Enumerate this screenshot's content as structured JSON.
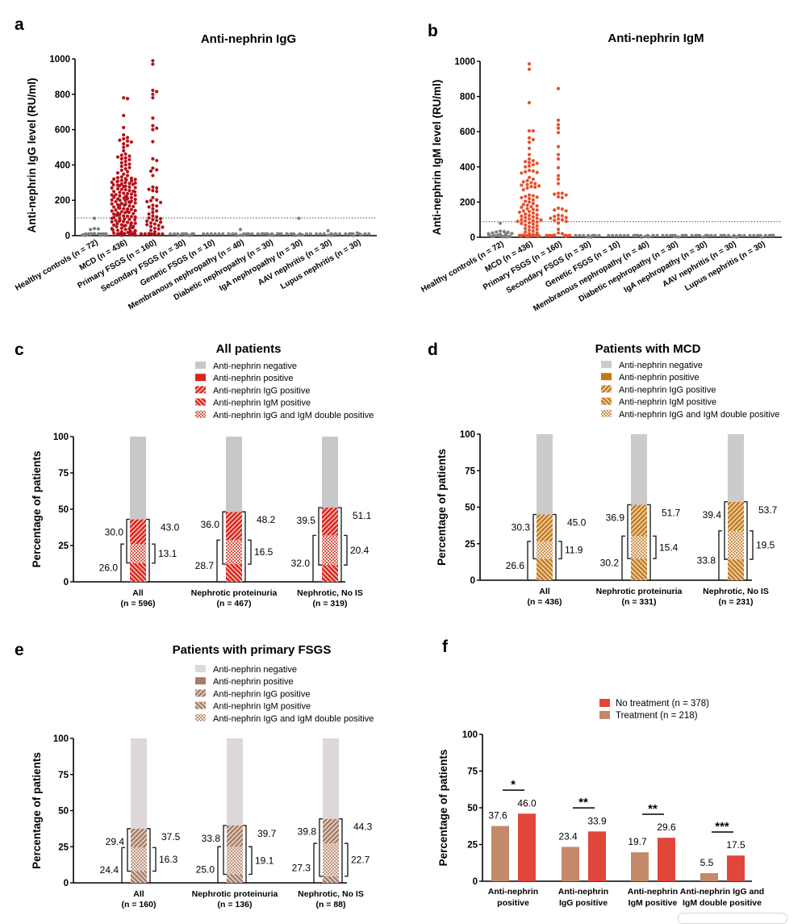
{
  "colors": {
    "gray_dot": "#808080",
    "igg_red": "#b5121b",
    "igm_orange": "#e4512f",
    "all_patients": "#d9261c",
    "mcd": "#c47a1a",
    "fsgs": "#a67c62",
    "negative_c": "#c8c8c8",
    "negative_d": "#cbcbcb",
    "negative_e": "#ddd8da",
    "no_treatment": "#e0463a",
    "treatment": "#c4896a"
  },
  "chart_data": [
    {
      "panel": "a",
      "type": "scatter",
      "title": "Anti-nephrin IgG",
      "ylabel": "Anti-nephrin IgG level (RU/ml)",
      "ylim": [
        0,
        1000
      ],
      "yticks": [
        0,
        200,
        400,
        600,
        800,
        1000
      ],
      "threshold": 100,
      "highlight_color": "#b5121b",
      "categories": [
        "Healthy controls (n = 72)",
        "MCD (n = 436)",
        "Primary FSGS (n = 160)",
        "Secondary FSGS (n = 30)",
        "Genetic FSGS (n = 10)",
        "Membranous nephropathy (n = 40)",
        "Diabetic nephropathy (n = 30)",
        "IgA nephropathy (n = 30)",
        "AAV nephritis (n = 30)",
        "Lupus nephritis (n = 30)"
      ],
      "highlighted": [
        1,
        2
      ],
      "values": [
        [
          98,
          40,
          38,
          35,
          12,
          10,
          8,
          6,
          5,
          5,
          4,
          3,
          2,
          2,
          1,
          0,
          0,
          0,
          0,
          0,
          0,
          0
        ],
        [
          780,
          775,
          680,
          612,
          570,
          555,
          548,
          540,
          535,
          530,
          520,
          510,
          500,
          480,
          462,
          455,
          450,
          445,
          440,
          435,
          430,
          420,
          412,
          405,
          400,
          392,
          385,
          378,
          370,
          362,
          355,
          348,
          340,
          332,
          328,
          325,
          322,
          320,
          318,
          315,
          312,
          310,
          308,
          305,
          302,
          300,
          298,
          295,
          292,
          290,
          288,
          285,
          282,
          280,
          278,
          275,
          272,
          270,
          265,
          262,
          260,
          255,
          252,
          250,
          248,
          245,
          240,
          238,
          235,
          232,
          230,
          228,
          225,
          222,
          220,
          218,
          215,
          212,
          210,
          208,
          205,
          202,
          200,
          198,
          195,
          192,
          190,
          188,
          185,
          182,
          180,
          178,
          175,
          172,
          170,
          168,
          165,
          162,
          160,
          158,
          155,
          152,
          150,
          148,
          145,
          142,
          140,
          138,
          135,
          132,
          130,
          128,
          125,
          122,
          120,
          118,
          115,
          112,
          110,
          108,
          105,
          102,
          100,
          98,
          95,
          92,
          90,
          88,
          85,
          82,
          80,
          78,
          75,
          72,
          70,
          68,
          65,
          62,
          60,
          58,
          55,
          52,
          50,
          48,
          45,
          42,
          40,
          38,
          35,
          32,
          30,
          28,
          25,
          22,
          20,
          18,
          15,
          12,
          10,
          8,
          5,
          3,
          2,
          0,
          0,
          0,
          0,
          0,
          0,
          0,
          0
        ],
        [
          990,
          970,
          822,
          815,
          800,
          780,
          665,
          622,
          608,
          600,
          532,
          435,
          425,
          382,
          372,
          365,
          340,
          275,
          270,
          262,
          255,
          250,
          215,
          202,
          198,
          192,
          188,
          172,
          168,
          162,
          152,
          140,
          132,
          122,
          112,
          106,
          100,
          96,
          90,
          86,
          82,
          76,
          72,
          66,
          62,
          58,
          52,
          48,
          42,
          38,
          30,
          22,
          12,
          6,
          0,
          0,
          0,
          0,
          0,
          0
        ],
        [
          10,
          3,
          2,
          1,
          0,
          0,
          0,
          0,
          0,
          0,
          0,
          0
        ],
        [
          0,
          0,
          0,
          0,
          0,
          0
        ],
        [
          35,
          3,
          2,
          1,
          0,
          0,
          0,
          0,
          0,
          0,
          0,
          0,
          0
        ],
        [
          2,
          1,
          0,
          0,
          0,
          0,
          0,
          0,
          0,
          0,
          0
        ],
        [
          98,
          5,
          3,
          1,
          0,
          0,
          0,
          0,
          0,
          0,
          0
        ],
        [
          28,
          2,
          1,
          0,
          0,
          0,
          0,
          0,
          0,
          0,
          0
        ],
        [
          15,
          3,
          1,
          0,
          0,
          0,
          0,
          0,
          0,
          0,
          0
        ]
      ]
    },
    {
      "panel": "b",
      "type": "scatter",
      "title": "Anti-nephrin IgM",
      "ylabel": "Anti-nephrin IgM level (RU/ml)",
      "ylim": [
        0,
        1000
      ],
      "yticks": [
        0,
        200,
        400,
        600,
        800,
        1000
      ],
      "threshold": 88,
      "highlight_color": "#e4512f",
      "categories": [
        "Healthy controls (n = 72)",
        "MCD (n = 436)",
        "Primary FSGS (n = 160)",
        "Secondary FSGS (n = 30)",
        "Genetic FSGS (n = 10)",
        "Membranous nephropathy (n = 40)",
        "Diabetic nephropathy (n = 30)",
        "IgA nephropathy (n = 30)",
        "AAV nephritis (n = 30)",
        "Lupus nephritis (n = 30)"
      ],
      "highlighted": [
        1,
        2
      ],
      "values": [
        [
          80,
          35,
          32,
          30,
          28,
          25,
          22,
          20,
          18,
          15,
          12,
          10,
          8,
          6,
          5,
          5,
          3,
          2,
          0,
          0,
          0,
          0,
          0,
          0
        ],
        [
          985,
          955,
          765,
          605,
          605,
          565,
          555,
          540,
          505,
          470,
          445,
          435,
          430,
          425,
          420,
          412,
          405,
          400,
          380,
          376,
          372,
          368,
          365,
          340,
          330,
          322,
          315,
          310,
          305,
          300,
          296,
          292,
          288,
          285,
          280,
          270,
          240,
          236,
          232,
          228,
          225,
          220,
          212,
          205,
          200,
          192,
          186,
          182,
          178,
          174,
          170,
          162,
          158,
          155,
          150,
          146,
          142,
          138,
          132,
          128,
          124,
          120,
          116,
          112,
          108,
          104,
          100,
          98,
          95,
          92,
          90,
          86,
          82,
          78,
          75,
          70,
          65,
          60,
          55,
          50,
          45,
          40,
          35,
          30,
          25,
          20,
          15,
          12,
          10,
          8,
          5,
          3,
          0,
          0,
          0,
          0,
          0,
          0,
          0,
          0,
          0,
          0
        ],
        [
          845,
          665,
          640,
          620,
          595,
          515,
          470,
          445,
          395,
          350,
          330,
          305,
          250,
          250,
          245,
          240,
          230,
          225,
          165,
          160,
          155,
          150,
          125,
          122,
          118,
          112,
          108,
          104,
          100,
          96,
          90,
          80,
          45,
          25,
          20,
          12,
          6,
          0,
          0,
          0,
          0,
          0,
          0,
          0,
          0
        ],
        [
          2,
          1,
          0,
          0,
          0,
          0,
          0,
          0,
          0,
          0
        ],
        [
          0,
          0,
          0,
          0,
          0,
          0
        ],
        [
          5,
          2,
          1,
          0,
          0,
          0,
          0,
          0,
          0,
          0,
          0,
          0
        ],
        [
          6,
          2,
          0,
          0,
          0,
          0,
          0,
          0,
          0,
          0
        ],
        [
          2,
          0,
          0,
          0,
          0,
          0,
          0,
          0,
          0,
          0
        ],
        [
          3,
          1,
          0,
          0,
          0,
          0,
          0,
          0,
          0,
          0
        ],
        [
          1,
          0,
          0,
          0,
          0,
          0,
          0,
          0,
          0,
          0
        ]
      ]
    },
    {
      "panel": "c",
      "type": "bar",
      "stacked": true,
      "title": "All patients",
      "ylabel": "Percentage of patients",
      "ylim": [
        0,
        100
      ],
      "yticks": [
        0,
        25,
        50,
        75,
        100
      ],
      "color": "#d9261c",
      "negative_color": "#c8c8c8",
      "legend": [
        "Anti-nephrin negative",
        "Anti-nephrin positive",
        "Anti-nephrin IgG positive",
        "Anti-nephrin IgM positive",
        "Anti-nephrin IgG and IgM double positive"
      ],
      "categories": [
        {
          "label": "All",
          "n": "(n = 596)",
          "positive": 43.0,
          "igg": 30.0,
          "igm": 26.0,
          "double": 13.1
        },
        {
          "label": "Nephrotic proteinuria",
          "n": "(n = 467)",
          "positive": 48.2,
          "igg": 36.0,
          "igm": 28.7,
          "double": 16.5
        },
        {
          "label": "Nephrotic, No IS",
          "n": "(n = 319)",
          "positive": 51.1,
          "igg": 39.5,
          "igm": 32.0,
          "double": 20.4
        }
      ]
    },
    {
      "panel": "d",
      "type": "bar",
      "stacked": true,
      "title": "Patients with MCD",
      "ylabel": "Percentage of patients",
      "ylim": [
        0,
        100
      ],
      "yticks": [
        0,
        25,
        50,
        75,
        100
      ],
      "color": "#c47a1a",
      "negative_color": "#cbcbcb",
      "legend": [
        "Anti-nephrin negative",
        "Anti-nephrin positive",
        "Anti-nephrin IgG positive",
        "Anti-nephrin IgM positive",
        "Anti-nephrin IgG and IgM double positive"
      ],
      "categories": [
        {
          "label": "All",
          "n": "(n = 436)",
          "positive": 45.0,
          "igg": 30.3,
          "igm": 26.6,
          "double": 11.9
        },
        {
          "label": "Nephrotic proteinuria",
          "n": "(n = 331)",
          "positive": 51.7,
          "igg": 36.9,
          "igm": 30.2,
          "double": 15.4
        },
        {
          "label": "Nephrotic, No IS",
          "n": "(n = 231)",
          "positive": 53.7,
          "igg": 39.4,
          "igm": 33.8,
          "double": 19.5
        }
      ]
    },
    {
      "panel": "e",
      "type": "bar",
      "stacked": true,
      "title": "Patients with primary FSGS",
      "ylabel": "Percentage of patients",
      "ylim": [
        0,
        100
      ],
      "yticks": [
        0,
        25,
        50,
        75,
        100
      ],
      "color": "#a67c62",
      "negative_color": "#ddd8da",
      "legend": [
        "Anti-nephrin negative",
        "Anti-nephrin positive",
        "Anti-nephrin IgG positive",
        "Anti-nephrin IgM positive",
        "Anti-nephrin IgG and IgM double positive"
      ],
      "categories": [
        {
          "label": "All",
          "n": "(n = 160)",
          "positive": 37.5,
          "igg": 29.4,
          "igm": 24.4,
          "double": 16.3
        },
        {
          "label": "Nephrotic proteinuria",
          "n": "(n = 136)",
          "positive": 39.7,
          "igg": 33.8,
          "igm": 25.0,
          "double": 19.1
        },
        {
          "label": "Nephrotic, No IS",
          "n": "(n = 88)",
          "positive": 44.3,
          "igg": 39.8,
          "igm": 27.3,
          "double": 22.7
        }
      ]
    },
    {
      "panel": "f",
      "type": "bar",
      "title": "",
      "ylabel": "Percentage of patients",
      "ylim": [
        0,
        100
      ],
      "yticks": [
        0,
        25,
        50,
        75,
        100
      ],
      "categories": [
        [
          "Anti-nephrin",
          "positive"
        ],
        [
          "Anti-nephrin",
          "IgG positive"
        ],
        [
          "Anti-nephrin",
          "IgM positive"
        ],
        [
          "Anti-nephrin IgG and",
          "IgM double positive"
        ]
      ],
      "series": [
        {
          "name": "Treatment (n = 218)",
          "color": "#c4896a",
          "values": [
            37.6,
            23.4,
            19.7,
            5.5
          ]
        },
        {
          "name": "No treatment (n = 378)",
          "color": "#e0463a",
          "values": [
            46.0,
            33.9,
            29.6,
            17.5
          ]
        }
      ],
      "legend_order": [
        "No treatment (n = 378)",
        "Treatment (n = 218)"
      ],
      "significance": [
        "*",
        "**",
        "**",
        "***"
      ]
    }
  ]
}
